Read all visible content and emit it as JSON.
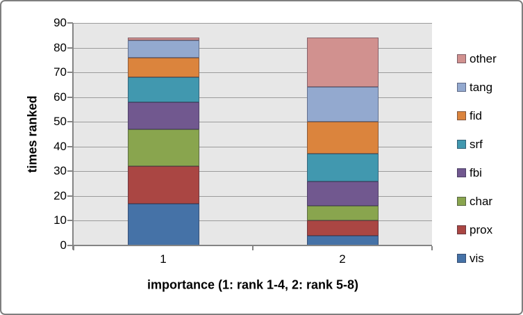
{
  "frame": {
    "border_color": "#7f7f7f",
    "background": "#ffffff"
  },
  "chart_data": {
    "type": "bar",
    "stacked": true,
    "title": "",
    "xlabel": "importance (1: rank 1-4, 2: rank 5-8)",
    "ylabel": "times ranked",
    "categories": [
      "1",
      "2"
    ],
    "series": [
      {
        "name": "vis",
        "color": "#4572a7",
        "values": [
          17,
          4
        ]
      },
      {
        "name": "prox",
        "color": "#aa4643",
        "values": [
          15,
          6
        ]
      },
      {
        "name": "char",
        "color": "#89a54e",
        "values": [
          15,
          6
        ]
      },
      {
        "name": "fbi",
        "color": "#71588f",
        "values": [
          11,
          10
        ]
      },
      {
        "name": "srf",
        "color": "#4198af",
        "values": [
          10,
          11
        ]
      },
      {
        "name": "fid",
        "color": "#db843d",
        "values": [
          8,
          13
        ]
      },
      {
        "name": "tang",
        "color": "#93a9cf",
        "values": [
          7,
          14
        ]
      },
      {
        "name": "other",
        "color": "#d1918f",
        "values": [
          1,
          20
        ]
      }
    ],
    "legend_order": [
      "other",
      "tang",
      "fid",
      "srf",
      "fbi",
      "char",
      "prox",
      "vis"
    ],
    "legend_position": "right",
    "ylim": [
      0,
      90
    ],
    "ytick_step": 10,
    "yticks": [
      "0",
      "10",
      "20",
      "30",
      "40",
      "50",
      "60",
      "70",
      "80",
      "90"
    ],
    "grid": true,
    "plot_bg": "#e7e7e7",
    "gridline_color": "#9b9b9b",
    "axis_color": "#848484"
  }
}
